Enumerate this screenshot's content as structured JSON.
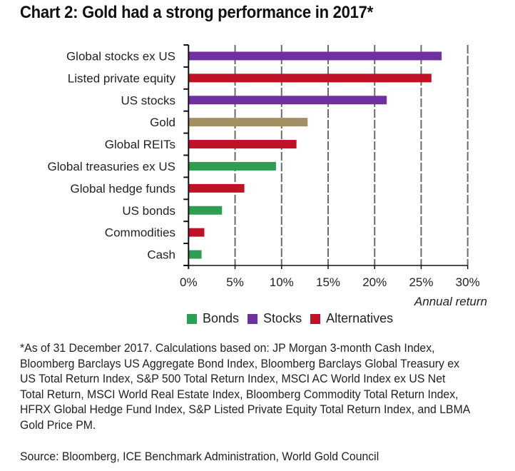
{
  "title": "Chart 2: Gold had a strong performance in 2017*",
  "chart_data": {
    "type": "bar",
    "orientation": "horizontal",
    "title": "Chart 2: Gold had a strong performance in 2017*",
    "xlabel": "Annual return",
    "ylabel": "",
    "xlim": [
      0,
      30
    ],
    "x_ticks": [
      0,
      5,
      10,
      15,
      20,
      25,
      30
    ],
    "x_tick_labels": [
      "0%",
      "5%",
      "10%",
      "15%",
      "20%",
      "25%",
      "30%"
    ],
    "grid": "vertical dashed",
    "legend_position": "bottom",
    "categories": [
      "Global stocks ex US",
      "Listed private equity",
      "US stocks",
      "Gold",
      "Global REITs",
      "Global treasuries ex US",
      "Global hedge funds",
      "US bonds",
      "Commodities",
      "Cash"
    ],
    "values": [
      27.2,
      26.1,
      21.3,
      12.8,
      11.6,
      9.4,
      6.0,
      3.6,
      1.7,
      1.4
    ],
    "groups": [
      "Stocks",
      "Alternatives",
      "Stocks",
      "Gold",
      "Alternatives",
      "Bonds",
      "Alternatives",
      "Bonds",
      "Alternatives",
      "Bonds"
    ],
    "unit": "%",
    "colors": {
      "Bonds": "#2e9e50",
      "Stocks": "#7030a0",
      "Alternatives": "#c01227",
      "Gold": "#a38f64"
    },
    "legend": [
      {
        "name": "Bonds",
        "color": "#2e9e50"
      },
      {
        "name": "Stocks",
        "color": "#7030a0"
      },
      {
        "name": "Alternatives",
        "color": "#c01227"
      }
    ]
  },
  "footnote": "*As of 31 December 2017. Calculations based on: JP Morgan 3-month Cash Index, Bloomberg Barclays US Aggregate Bond Index, Bloomberg Barclays Global Treasury ex US Total Return Index, S&P 500 Total Return Index, MSCI AC World Index ex US Net Total Return, MSCI World Real Estate Index, Bloomberg Commodity Total Return Index, HFRX Global Hedge Fund Index, S&P Listed Private Equity Total Return Index, and LBMA Gold Price PM.",
  "source": "Source: Bloomberg, ICE Benchmark Administration, World Gold Council"
}
